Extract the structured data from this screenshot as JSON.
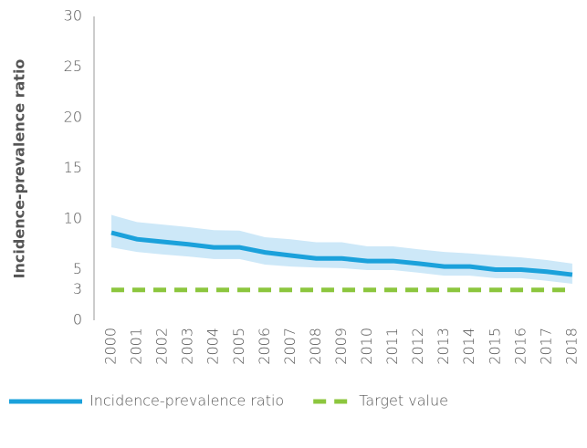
{
  "chart_data": {
    "type": "line",
    "y_label": "Incidence-prevalence ratio",
    "categories": [
      "2000",
      "2001",
      "2002",
      "2003",
      "2004",
      "2005",
      "2006",
      "2007",
      "2008",
      "2009",
      "2010",
      "2011",
      "2012",
      "2013",
      "2014",
      "2015",
      "2016",
      "2017",
      "2018"
    ],
    "series": [
      {
        "name": "Incidence-prevalence ratio",
        "color": "#1ba1db",
        "style": "solid",
        "values": [
          8.65,
          8.0,
          7.75,
          7.5,
          7.2,
          7.2,
          6.7,
          6.4,
          6.1,
          6.1,
          5.85,
          5.85,
          5.6,
          5.3,
          5.3,
          5.0,
          5.0,
          4.8,
          4.5
        ],
        "band": {
          "color": "#cde8f8",
          "upper": [
            10.4,
            9.7,
            9.45,
            9.2,
            8.9,
            8.85,
            8.2,
            8.0,
            7.7,
            7.7,
            7.3,
            7.3,
            7.0,
            6.75,
            6.6,
            6.4,
            6.2,
            5.95,
            5.6
          ],
          "lower": [
            7.2,
            6.75,
            6.5,
            6.3,
            6.05,
            6.05,
            5.5,
            5.3,
            5.2,
            5.15,
            4.95,
            4.95,
            4.7,
            4.4,
            4.4,
            4.15,
            4.15,
            3.9,
            3.6
          ]
        }
      },
      {
        "name": "Target value",
        "color": "#8cc63e",
        "style": "dashed",
        "values": [
          3,
          3,
          3,
          3,
          3,
          3,
          3,
          3,
          3,
          3,
          3,
          3,
          3,
          3,
          3,
          3,
          3,
          3,
          3
        ]
      }
    ],
    "ylim": [
      0,
      30
    ],
    "yticks": [
      0,
      3,
      5,
      10,
      15,
      20,
      25,
      30
    ],
    "grid": false,
    "legend": "bottom"
  }
}
